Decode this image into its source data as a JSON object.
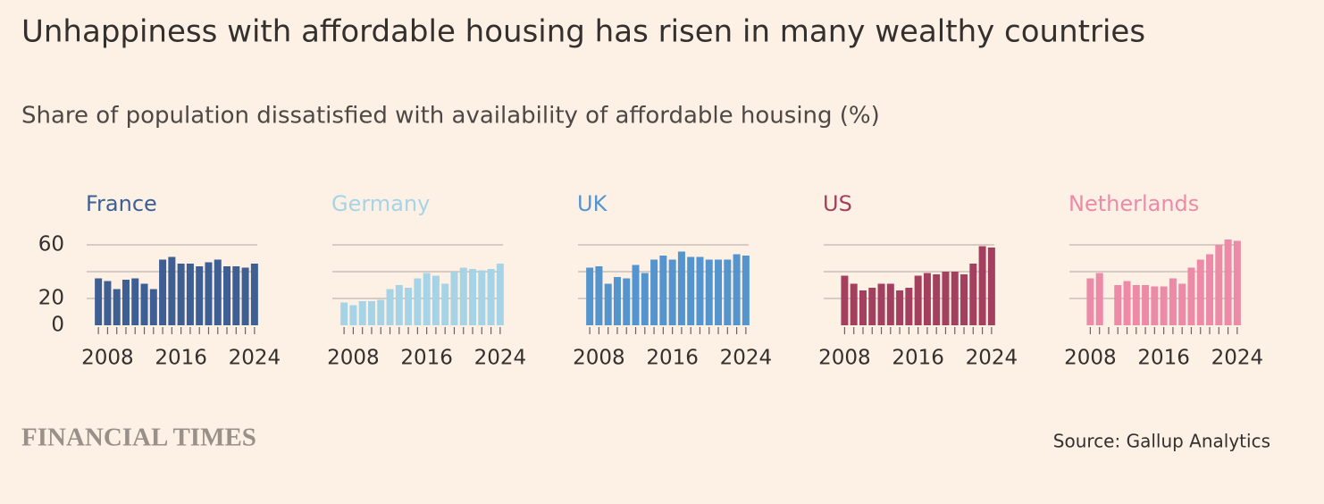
{
  "title": "Unhappiness with affordable housing has risen in many wealthy countries",
  "subtitle": "Share of population dissatisfied with availability of affordable housing (%)",
  "brand": "FINANCIAL TIMES",
  "source": "Source: Gallup Analytics",
  "chart_data": [
    {
      "type": "bar",
      "title": "France",
      "color": "#3d5f94",
      "x": [
        2007,
        2008,
        2009,
        2010,
        2011,
        2012,
        2013,
        2014,
        2015,
        2016,
        2017,
        2018,
        2019,
        2020,
        2021,
        2022,
        2023,
        2024
      ],
      "values": [
        35,
        33,
        27,
        34,
        35,
        31,
        27,
        49,
        51,
        46,
        46,
        44,
        47,
        49,
        44,
        44,
        43,
        46
      ],
      "xlim": [
        2006.5,
        2024.5
      ],
      "xticks": [
        2008,
        2016,
        2024
      ],
      "ylim": [
        0,
        60
      ],
      "yticks": [
        0,
        20,
        60
      ],
      "grid_lines": [
        20,
        40,
        60
      ]
    },
    {
      "type": "bar",
      "title": "Germany",
      "color": "#a7d3e6",
      "x": [
        2007,
        2008,
        2009,
        2010,
        2011,
        2012,
        2013,
        2014,
        2015,
        2016,
        2017,
        2018,
        2019,
        2020,
        2021,
        2022,
        2023,
        2024
      ],
      "values": [
        17,
        15,
        18,
        18,
        19,
        27,
        30,
        28,
        35,
        39,
        37,
        31,
        40,
        43,
        42,
        41,
        42,
        46
      ],
      "xlim": [
        2006.5,
        2024.5
      ],
      "xticks": [
        2008,
        2016,
        2024
      ],
      "ylim": [
        0,
        60
      ],
      "grid_lines": [
        20,
        40,
        60
      ]
    },
    {
      "type": "bar",
      "title": "UK",
      "color": "#5595cf",
      "x": [
        2007,
        2008,
        2009,
        2010,
        2011,
        2012,
        2013,
        2014,
        2015,
        2016,
        2017,
        2018,
        2019,
        2020,
        2021,
        2022,
        2023,
        2024
      ],
      "values": [
        43,
        44,
        31,
        36,
        35,
        45,
        39,
        49,
        52,
        49,
        55,
        51,
        51,
        49,
        49,
        49,
        53,
        52
      ],
      "xlim": [
        2006.5,
        2024.5
      ],
      "xticks": [
        2008,
        2016,
        2024
      ],
      "ylim": [
        0,
        60
      ],
      "grid_lines": [
        20,
        40,
        60
      ]
    },
    {
      "type": "bar",
      "title": "US",
      "color": "#a3405f",
      "x": [
        2008,
        2009,
        2010,
        2011,
        2012,
        2013,
        2014,
        2015,
        2016,
        2017,
        2018,
        2019,
        2020,
        2021,
        2022,
        2023,
        2024
      ],
      "values": [
        37,
        31,
        26,
        28,
        31,
        31,
        26,
        28,
        37,
        39,
        38,
        40,
        40,
        38,
        46,
        59,
        58
      ],
      "xlim": [
        2006.5,
        2024.5
      ],
      "xticks": [
        2008,
        2016,
        2024
      ],
      "ylim": [
        0,
        60
      ],
      "grid_lines": [
        20,
        40,
        60
      ]
    },
    {
      "type": "bar",
      "title": "Netherlands",
      "color": "#ec8aa8",
      "x": [
        2008,
        2009,
        2010,
        2011,
        2012,
        2013,
        2014,
        2015,
        2016,
        2017,
        2018,
        2019,
        2020,
        2021,
        2022,
        2023,
        2024
      ],
      "values": [
        35,
        39,
        null,
        30,
        33,
        30,
        30,
        29,
        29,
        35,
        31,
        43,
        49,
        53,
        60,
        64,
        63
      ],
      "xlim": [
        2006.5,
        2024.5
      ],
      "xticks": [
        2008,
        2016,
        2024
      ],
      "ylim": [
        0,
        60
      ],
      "grid_lines": [
        20,
        40,
        60
      ]
    }
  ]
}
